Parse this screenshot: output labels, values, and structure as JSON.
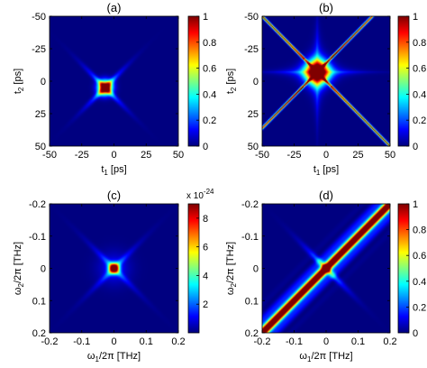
{
  "chart_data": [
    {
      "type": "heatmap",
      "panel_label": "(a)",
      "xlabel_base": "t",
      "xlabel_sub": "1",
      "xlabel_unit": " [ps]",
      "ylabel_base": "t",
      "ylabel_sub": "2",
      "ylabel_unit": " [ps]",
      "xlim": [
        -50,
        50
      ],
      "ylim": [
        -50,
        50
      ],
      "y_inverted": true,
      "xticks": [
        "-50",
        "-25",
        "0",
        "25",
        "50"
      ],
      "yticks": [
        "-50",
        "-25",
        "0",
        "25",
        "50"
      ],
      "colorbar": {
        "range": [
          0,
          1
        ],
        "ticks": [
          "0",
          "0.2",
          "0.4",
          "0.6",
          "0.8",
          "1"
        ],
        "exponent_label": ""
      },
      "pattern": "star-offset",
      "peak": {
        "x": -7,
        "y": 5,
        "value": 1
      }
    },
    {
      "type": "heatmap",
      "panel_label": "(b)",
      "xlabel_base": "t",
      "xlabel_sub": "1",
      "xlabel_unit": " [ps]",
      "ylabel_base": "t",
      "ylabel_sub": "2",
      "ylabel_unit": " [ps]",
      "xlim": [
        -50,
        50
      ],
      "ylim": [
        -50,
        50
      ],
      "y_inverted": true,
      "xticks": [
        "-50",
        "-25",
        "0",
        "25",
        "50"
      ],
      "yticks": [
        "-50",
        "-25",
        "0",
        "25",
        "50"
      ],
      "colorbar": {
        "range": [
          0,
          1
        ],
        "ticks": [
          "0",
          "0.2",
          "0.4",
          "0.6",
          "0.8",
          "1"
        ],
        "exponent_label": ""
      },
      "pattern": "star-cross",
      "peak": {
        "x": -7,
        "y": -7,
        "value": 1
      }
    },
    {
      "type": "heatmap",
      "panel_label": "(c)",
      "xlabel_base": "ω",
      "xlabel_sub": "1",
      "xlabel_unit": "/2π [THz]",
      "ylabel_base": "ω",
      "ylabel_sub": "2",
      "ylabel_unit": "/2π [THz]",
      "xlim": [
        -0.2,
        0.2
      ],
      "ylim": [
        -0.2,
        0.2
      ],
      "y_inverted": true,
      "xticks": [
        "-0.2",
        "-0.1",
        "0",
        "0.1",
        "0.2"
      ],
      "yticks": [
        "-0.2",
        "-0.1",
        "0",
        "0.1",
        "0.2"
      ],
      "colorbar": {
        "range": [
          0,
          9
        ],
        "ticks": [
          "2",
          "4",
          "6",
          "8"
        ],
        "exponent_label": "x 10",
        "exponent_value": "-24"
      },
      "pattern": "center-spot",
      "peak": {
        "x": 0,
        "y": 0,
        "value": 8.5
      }
    },
    {
      "type": "heatmap",
      "panel_label": "(d)",
      "xlabel_base": "ω",
      "xlabel_sub": "1",
      "xlabel_unit": "/2π [THz]",
      "ylabel_base": "ω",
      "ylabel_sub": "2",
      "ylabel_unit": "/2π [THz]",
      "xlim": [
        -0.2,
        0.2
      ],
      "ylim": [
        -0.2,
        0.2
      ],
      "y_inverted": true,
      "xticks": [
        "-0.2",
        "-0.1",
        "0",
        "0.1",
        "0.2"
      ],
      "yticks": [
        "-0.2",
        "-0.1",
        "0",
        "0.1",
        "0.2"
      ],
      "colorbar": {
        "range": [
          0,
          1
        ],
        "ticks": [
          "0",
          "0.2",
          "0.4",
          "0.6",
          "0.8",
          "1"
        ],
        "exponent_label": ""
      },
      "pattern": "diagonal-band",
      "peak": {
        "x": 0,
        "y": 0,
        "value": 1
      }
    }
  ]
}
